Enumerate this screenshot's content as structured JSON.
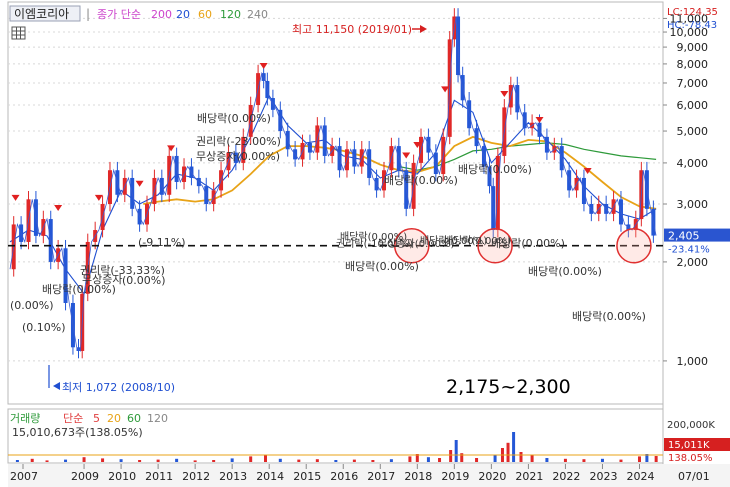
{
  "header": {
    "stock_name": "이엠코리아",
    "ma_label": "종가 단순",
    "ma_periods": [
      "200",
      "20",
      "60",
      "120",
      "240"
    ],
    "ma_colors": [
      "#cc44cc",
      "#1f4fd1",
      "#e8a317",
      "#2e9a3a",
      "#888888"
    ],
    "lc_label": "LC:124.35",
    "hc_label": "HC:-78.43"
  },
  "volume_header": {
    "label": "거래량",
    "ma_label": "단순",
    "ma_periods": [
      "5",
      "20",
      "60",
      "120"
    ],
    "ma_colors": [
      "#e04040",
      "#e8a317",
      "#2e9a3a",
      "#888888"
    ],
    "current": "15,010,673주(138.05%)"
  },
  "price_axis": {
    "ticks": [
      {
        "v": 1000,
        "label": "1,000"
      },
      {
        "v": 2000,
        "label": "2,000"
      },
      {
        "v": 3000,
        "label": "3,000"
      },
      {
        "v": 4000,
        "label": "4,000"
      },
      {
        "v": 5000,
        "label": "5,000"
      },
      {
        "v": 6000,
        "label": "6,000"
      },
      {
        "v": 7000,
        "label": "7,000"
      },
      {
        "v": 8000,
        "label": "8,000"
      },
      {
        "v": 9000,
        "label": "9,000"
      },
      {
        "v": 10000,
        "label": "10,000"
      },
      {
        "v": 11000,
        "label": "11,000"
      }
    ],
    "current_label": "2,405",
    "current_value": 2405,
    "current_change": "-23.41%"
  },
  "volume_axis": {
    "top_label": "200,000K",
    "current_label": "15,011K",
    "current_pct": "138.05%"
  },
  "time_axis": {
    "labels": [
      "2007",
      "2009",
      "2010",
      "2011",
      "2012",
      "2013",
      "2014",
      "2015",
      "2016",
      "2017",
      "2018",
      "2019",
      "2020",
      "2021",
      "2022",
      "2023",
      "2024",
      "07/01"
    ]
  },
  "annotations": {
    "high": "최고 11,150 (2019/01)",
    "low": "최저 1,072 (2008/10)",
    "events": [
      {
        "text": "(0.00%)"
      },
      {
        "text": "(0.10%)"
      },
      {
        "text": "배당락(0.00%)"
      },
      {
        "text": "무상증자"
      },
      {
        "text": "권리락(-33,33%)"
      },
      {
        "text": "(0.00%)"
      },
      {
        "text": "(-9.11%)"
      },
      {
        "text": "배당락(0.00%)"
      },
      {
        "text": "권리락(-23.00%)"
      },
      {
        "text": "무상증자(0.00%)"
      },
      {
        "text": "배당락(0.00%)"
      },
      {
        "text": "배당락(0.00%)"
      },
      {
        "text": "배당락(0.00%)"
      },
      {
        "text": "권리락(-10.01%)"
      },
      {
        "text": "무상증자(0.00%)"
      },
      {
        "text": "배당락(0.00%)"
      },
      {
        "text": "배당락(0.00%)"
      },
      {
        "text": "배당락(0.00%)"
      },
      {
        "text": "배당락(0.00%)"
      },
      {
        "text": "배당락(0.00%)"
      },
      {
        "text": "배당락(0.00%)"
      }
    ],
    "support_range": "2,175~2,300"
  },
  "chart_data": {
    "type": "line",
    "price_scale": "log",
    "x_range": [
      2007.0,
      2024.5
    ],
    "y_range": [
      750,
      12000
    ],
    "support_level": 2240,
    "price": [
      [
        2007.0,
        1900
      ],
      [
        2007.2,
        2600
      ],
      [
        2007.4,
        2300
      ],
      [
        2007.6,
        3100
      ],
      [
        2007.8,
        2400
      ],
      [
        2008.0,
        2700
      ],
      [
        2008.2,
        2000
      ],
      [
        2008.4,
        2200
      ],
      [
        2008.6,
        1500
      ],
      [
        2008.8,
        1100
      ],
      [
        2008.9,
        1072
      ],
      [
        2009.0,
        1600
      ],
      [
        2009.2,
        2300
      ],
      [
        2009.4,
        2500
      ],
      [
        2009.6,
        3000
      ],
      [
        2009.8,
        3800
      ],
      [
        2010.0,
        3200
      ],
      [
        2010.2,
        3600
      ],
      [
        2010.4,
        2900
      ],
      [
        2010.6,
        2600
      ],
      [
        2010.8,
        3000
      ],
      [
        2011.0,
        3600
      ],
      [
        2011.2,
        3200
      ],
      [
        2011.4,
        4200
      ],
      [
        2011.6,
        3500
      ],
      [
        2011.8,
        3900
      ],
      [
        2012.0,
        3600
      ],
      [
        2012.2,
        3400
      ],
      [
        2012.4,
        3000
      ],
      [
        2012.6,
        3300
      ],
      [
        2012.8,
        3800
      ],
      [
        2013.0,
        4300
      ],
      [
        2013.2,
        4000
      ],
      [
        2013.4,
        4800
      ],
      [
        2013.6,
        6000
      ],
      [
        2013.8,
        7500
      ],
      [
        2013.9,
        7100
      ],
      [
        2014.0,
        6300
      ],
      [
        2014.2,
        5800
      ],
      [
        2014.4,
        5000
      ],
      [
        2014.6,
        4400
      ],
      [
        2014.8,
        4100
      ],
      [
        2015.0,
        4600
      ],
      [
        2015.2,
        4300
      ],
      [
        2015.4,
        5200
      ],
      [
        2015.6,
        4200
      ],
      [
        2015.8,
        4500
      ],
      [
        2016.0,
        3800
      ],
      [
        2016.2,
        4400
      ],
      [
        2016.4,
        3900
      ],
      [
        2016.6,
        4400
      ],
      [
        2016.8,
        3600
      ],
      [
        2017.0,
        3300
      ],
      [
        2017.2,
        3800
      ],
      [
        2017.4,
        4500
      ],
      [
        2017.6,
        3800
      ],
      [
        2017.8,
        2900
      ],
      [
        2018.0,
        4000
      ],
      [
        2018.2,
        4800
      ],
      [
        2018.4,
        4300
      ],
      [
        2018.6,
        3700
      ],
      [
        2018.8,
        4800
      ],
      [
        2018.95,
        9500
      ],
      [
        2019.05,
        11150
      ],
      [
        2019.15,
        7400
      ],
      [
        2019.3,
        6200
      ],
      [
        2019.5,
        5100
      ],
      [
        2019.7,
        4500
      ],
      [
        2019.9,
        3900
      ],
      [
        2020.0,
        3400
      ],
      [
        2020.1,
        2500
      ],
      [
        2020.25,
        4200
      ],
      [
        2020.45,
        5900
      ],
      [
        2020.6,
        6900
      ],
      [
        2020.8,
        5700
      ],
      [
        2021.0,
        5100
      ],
      [
        2021.2,
        5300
      ],
      [
        2021.4,
        4800
      ],
      [
        2021.6,
        4300
      ],
      [
        2021.8,
        4500
      ],
      [
        2022.0,
        3800
      ],
      [
        2022.2,
        3300
      ],
      [
        2022.4,
        3600
      ],
      [
        2022.6,
        3000
      ],
      [
        2022.8,
        2800
      ],
      [
        2023.0,
        3000
      ],
      [
        2023.2,
        2800
      ],
      [
        2023.4,
        3100
      ],
      [
        2023.6,
        2600
      ],
      [
        2023.8,
        2500
      ],
      [
        2024.0,
        2700
      ],
      [
        2024.1,
        3800
      ],
      [
        2024.3,
        2900
      ],
      [
        2024.45,
        2405
      ]
    ],
    "ma_blue": [
      [
        2007.0,
        2300
      ],
      [
        2007.5,
        2500
      ],
      [
        2008.0,
        2400
      ],
      [
        2008.5,
        1900
      ],
      [
        2009.0,
        1600
      ],
      [
        2009.5,
        2500
      ],
      [
        2010.0,
        3300
      ],
      [
        2010.5,
        3000
      ],
      [
        2011.0,
        3200
      ],
      [
        2011.5,
        3700
      ],
      [
        2012.0,
        3600
      ],
      [
        2012.5,
        3300
      ],
      [
        2013.0,
        3800
      ],
      [
        2013.5,
        4800
      ],
      [
        2014.0,
        6400
      ],
      [
        2014.5,
        5200
      ],
      [
        2015.0,
        4600
      ],
      [
        2015.5,
        4700
      ],
      [
        2016.0,
        4200
      ],
      [
        2016.5,
        4100
      ],
      [
        2017.0,
        3600
      ],
      [
        2017.5,
        3800
      ],
      [
        2018.0,
        3700
      ],
      [
        2018.5,
        4300
      ],
      [
        2019.0,
        6200
      ],
      [
        2019.5,
        5700
      ],
      [
        2020.0,
        4000
      ],
      [
        2020.5,
        4600
      ],
      [
        2021.0,
        5300
      ],
      [
        2021.5,
        4700
      ],
      [
        2022.0,
        4100
      ],
      [
        2022.5,
        3400
      ],
      [
        2023.0,
        3000
      ],
      [
        2023.5,
        2800
      ],
      [
        2024.0,
        2700
      ],
      [
        2024.45,
        2900
      ]
    ],
    "ma_yellow": [
      [
        2010.6,
        3000
      ],
      [
        2011.0,
        3050
      ],
      [
        2011.5,
        3100
      ],
      [
        2012.0,
        3050
      ],
      [
        2012.5,
        3100
      ],
      [
        2013.0,
        3300
      ],
      [
        2013.5,
        3700
      ],
      [
        2014.0,
        4200
      ],
      [
        2014.5,
        4500
      ],
      [
        2015.0,
        4500
      ],
      [
        2015.5,
        4450
      ],
      [
        2016.0,
        4350
      ],
      [
        2016.5,
        4200
      ],
      [
        2017.0,
        3950
      ],
      [
        2017.5,
        3800
      ],
      [
        2018.0,
        3750
      ],
      [
        2018.5,
        3900
      ],
      [
        2019.0,
        4500
      ],
      [
        2019.5,
        4800
      ],
      [
        2020.0,
        4600
      ],
      [
        2020.5,
        4500
      ],
      [
        2021.0,
        4700
      ],
      [
        2021.5,
        4650
      ],
      [
        2022.0,
        4300
      ],
      [
        2022.5,
        3900
      ],
      [
        2023.0,
        3500
      ],
      [
        2023.5,
        3150
      ],
      [
        2024.0,
        2950
      ],
      [
        2024.45,
        2900
      ]
    ],
    "ma_green": [
      [
        2017.5,
        3900
      ],
      [
        2018.0,
        3800
      ],
      [
        2018.5,
        3900
      ],
      [
        2019.0,
        4100
      ],
      [
        2019.5,
        4350
      ],
      [
        2020.0,
        4400
      ],
      [
        2020.5,
        4500
      ],
      [
        2021.0,
        4550
      ],
      [
        2021.5,
        4600
      ],
      [
        2022.0,
        4550
      ],
      [
        2022.5,
        4400
      ],
      [
        2023.0,
        4300
      ],
      [
        2023.5,
        4200
      ],
      [
        2024.0,
        4150
      ],
      [
        2024.45,
        4100
      ]
    ],
    "volume": [
      [
        2007.2,
        5
      ],
      [
        2007.6,
        8
      ],
      [
        2008.0,
        4
      ],
      [
        2008.5,
        6
      ],
      [
        2009.0,
        12
      ],
      [
        2009.5,
        9
      ],
      [
        2010.0,
        7
      ],
      [
        2010.5,
        5
      ],
      [
        2011.0,
        6
      ],
      [
        2011.5,
        8
      ],
      [
        2012.0,
        4
      ],
      [
        2012.5,
        5
      ],
      [
        2013.0,
        9
      ],
      [
        2013.5,
        14
      ],
      [
        2013.9,
        18
      ],
      [
        2014.3,
        8
      ],
      [
        2014.8,
        6
      ],
      [
        2015.3,
        7
      ],
      [
        2015.8,
        5
      ],
      [
        2016.3,
        6
      ],
      [
        2016.8,
        5
      ],
      [
        2017.3,
        7
      ],
      [
        2017.8,
        14
      ],
      [
        2018.0,
        20
      ],
      [
        2018.3,
        12
      ],
      [
        2018.6,
        10
      ],
      [
        2018.9,
        30
      ],
      [
        2019.05,
        55
      ],
      [
        2019.2,
        22
      ],
      [
        2019.6,
        10
      ],
      [
        2020.1,
        18
      ],
      [
        2020.3,
        35
      ],
      [
        2020.45,
        48
      ],
      [
        2020.6,
        75
      ],
      [
        2020.8,
        25
      ],
      [
        2021.1,
        18
      ],
      [
        2021.5,
        10
      ],
      [
        2022.0,
        8
      ],
      [
        2022.5,
        7
      ],
      [
        2023.0,
        8
      ],
      [
        2023.5,
        6
      ],
      [
        2024.0,
        14
      ],
      [
        2024.2,
        20
      ],
      [
        2024.45,
        15
      ]
    ]
  }
}
